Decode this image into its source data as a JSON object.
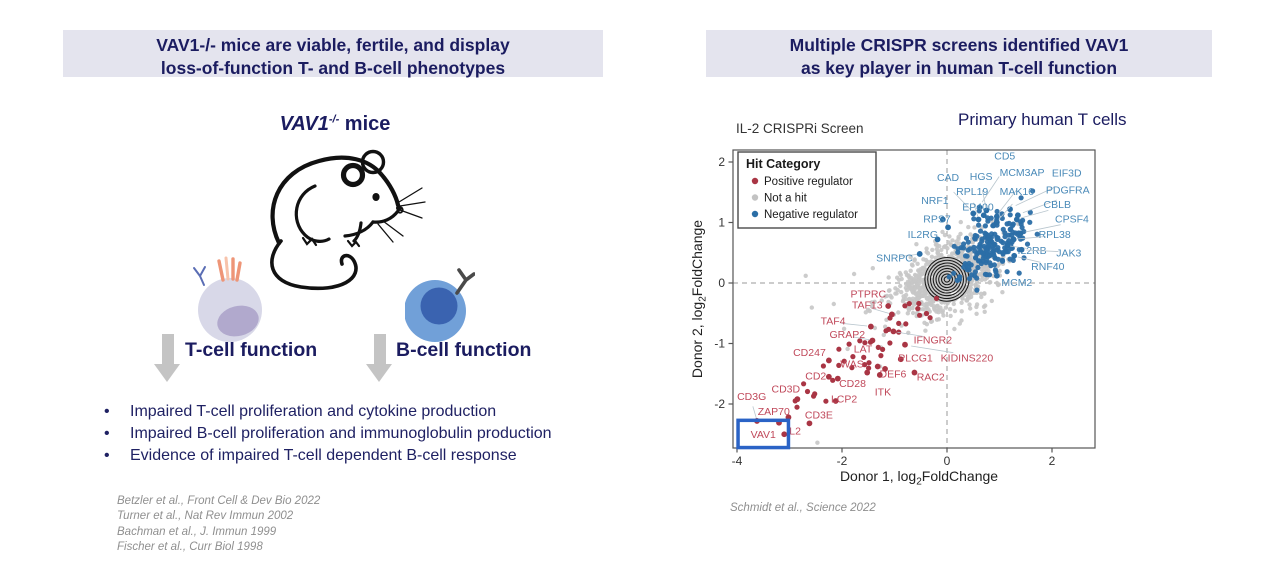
{
  "left_panel": {
    "header": {
      "lines": [
        "VAV1-/- mice are viable, fertile, and display",
        "loss-of-function T- and B-cell phenotypes"
      ],
      "bg_color": "#e4e4ee",
      "text_color": "#1b1c60"
    },
    "mice_title": {
      "gene": "VAV1",
      "superscript": "-/-",
      "suffix": " mice"
    },
    "t_arrow_label": "T-cell function",
    "b_arrow_label": "B-cell function",
    "arrow_color": "#c4c4c4",
    "bullets": [
      "Impaired T-cell proliferation and cytokine production",
      "Impaired B-cell proliferation and immunoglobulin production",
      "Evidence of impaired T-cell dependent B-cell response"
    ],
    "citations": [
      "Betzler et al., Front Cell & Dev Bio 2022",
      "Turner et al., Nat Rev Immun 2002",
      "Bachman et al., J. Immun 1999",
      "Fischer et al., Curr Biol 1998"
    ]
  },
  "right_panel": {
    "header": {
      "lines": [
        "Multiple CRISPR screens identified VAV1",
        "as key player in human T-cell function"
      ]
    },
    "subtitle": "Primary human T cells",
    "citation": "Schmidt et al., Science 2022"
  },
  "chart_data": {
    "type": "scatter",
    "title": "IL-2 CRISPRi Screen",
    "xlabel": {
      "pre": "Donor 1, log",
      "sub": "2",
      "post": "FoldChange"
    },
    "ylabel": {
      "pre": "Donor 2, log",
      "sub": "2",
      "post": "FoldChange"
    },
    "xlim": [
      -4.1,
      2.85
    ],
    "ylim": [
      -2.75,
      2.2
    ],
    "xticks": [
      -4,
      -2,
      0,
      2
    ],
    "yticks": [
      -2,
      -1,
      0,
      1,
      2
    ],
    "grid": false,
    "zero_lines": "dashed",
    "legend": {
      "title": "Hit Category",
      "position": "top-left",
      "entries": [
        {
          "label": "Positive regulator",
          "color": "#a93544"
        },
        {
          "label": "Not a hit",
          "color": "#c3c3c3"
        },
        {
          "label": "Negative regulator",
          "color": "#2b6ea6"
        }
      ]
    },
    "colors": {
      "positive_point": "#a93544",
      "positive_label": "#c0485a",
      "negative_point": "#2b6ea6",
      "negative_label": "#4a8ab8",
      "not_hit": "#c6c6c6",
      "contour": "#1a1a1a",
      "axis": "#555555",
      "tick_text": "#333333",
      "dashed": "#999999",
      "leader": "#b9c6ce",
      "highlight_box": "#2a63c6"
    },
    "genes": {
      "negative_regulators": [
        {
          "name": "CD5",
          "x": 0.62,
          "y": 1.25,
          "label_x": 1.1,
          "label_y": 2.1
        },
        {
          "name": "CAD",
          "x": 0.5,
          "y": 1.15,
          "label_x": 0.02,
          "label_y": 1.74
        },
        {
          "name": "HGS",
          "x": 0.75,
          "y": 1.2,
          "label_x": 0.65,
          "label_y": 1.76
        },
        {
          "name": "MCM3AP",
          "x": 0.95,
          "y": 1.1,
          "label_x": 1.43,
          "label_y": 1.83
        },
        {
          "name": "EIF3D",
          "x": 1.2,
          "y": 1.22,
          "label_x": 2.28,
          "label_y": 1.82
        },
        {
          "name": "RPL19",
          "x": 0.6,
          "y": 1.05,
          "label_x": 0.48,
          "label_y": 1.51
        },
        {
          "name": "MAK16",
          "x": 0.95,
          "y": 1.0,
          "label_x": 1.33,
          "label_y": 1.51
        },
        {
          "name": "PDGFRA",
          "x": 1.35,
          "y": 1.12,
          "label_x": 2.3,
          "label_y": 1.54
        },
        {
          "name": "NRF1",
          "x": -0.08,
          "y": 1.05,
          "label_x": -0.23,
          "label_y": 1.36
        },
        {
          "name": "EP400",
          "x": 0.7,
          "y": 1.12,
          "label_x": 0.59,
          "label_y": 1.26
        },
        {
          "name": "CBLB",
          "x": 1.33,
          "y": 1.05,
          "label_x": 2.1,
          "label_y": 1.3
        },
        {
          "name": "RPS7",
          "x": 0.02,
          "y": 0.92,
          "label_x": -0.19,
          "label_y": 1.06
        },
        {
          "name": "CPSF4",
          "x": 1.4,
          "y": 0.82,
          "label_x": 2.38,
          "label_y": 1.06
        },
        {
          "name": "IL2RG",
          "x": -0.18,
          "y": 0.72,
          "label_x": -0.46,
          "label_y": 0.8
        },
        {
          "name": "RPL38",
          "x": 1.27,
          "y": 0.72,
          "label_x": 2.05,
          "label_y": 0.8
        },
        {
          "name": "SNRPC",
          "x": -0.52,
          "y": 0.48,
          "label_x": -1.0,
          "label_y": 0.41
        },
        {
          "name": "IL2RB",
          "x": 1.15,
          "y": 0.62,
          "label_x": 1.62,
          "label_y": 0.54
        },
        {
          "name": "JAK3",
          "x": 1.42,
          "y": 0.55,
          "label_x": 2.32,
          "label_y": 0.5
        },
        {
          "name": "RNF40",
          "x": 1.28,
          "y": 0.45,
          "label_x": 1.92,
          "label_y": 0.27
        },
        {
          "name": "MCM2",
          "x": 0.95,
          "y": 0.12,
          "label_x": 1.33,
          "label_y": 0.01
        }
      ],
      "positive_regulators": [
        {
          "name": "PTPRC",
          "x": -1.12,
          "y": -0.38,
          "label_x": -1.5,
          "label_y": -0.18
        },
        {
          "name": "TAF13",
          "x": -1.05,
          "y": -0.52,
          "label_x": -1.52,
          "label_y": -0.36
        },
        {
          "name": "TAF4",
          "x": -1.45,
          "y": -0.72,
          "label_x": -2.17,
          "label_y": -0.63
        },
        {
          "name": "GRAP2",
          "x": -1.42,
          "y": -0.95,
          "label_x": -1.9,
          "label_y": -0.85
        },
        {
          "name": "CD247",
          "x": -2.25,
          "y": -1.28,
          "label_x": -2.62,
          "label_y": -1.15
        },
        {
          "name": "LAT",
          "x": -1.32,
          "y": -1.38,
          "label_x": -1.6,
          "label_y": -1.09
        },
        {
          "name": "WAS",
          "x": -1.52,
          "y": -1.48,
          "label_x": -1.81,
          "label_y": -1.34
        },
        {
          "name": "CD2",
          "x": -2.25,
          "y": -1.55,
          "label_x": -2.5,
          "label_y": -1.54
        },
        {
          "name": "CD28",
          "x": -2.08,
          "y": -1.58,
          "label_x": -1.8,
          "label_y": -1.66
        },
        {
          "name": "IFNGR2",
          "x": -1.02,
          "y": -0.8,
          "label_x": -0.27,
          "label_y": -0.94
        },
        {
          "name": "KIDINS220",
          "x": -0.8,
          "y": -1.02,
          "label_x": 0.38,
          "label_y": -1.24
        },
        {
          "name": "PLCG1",
          "x": -0.88,
          "y": -1.26,
          "label_x": -0.6,
          "label_y": -1.24
        },
        {
          "name": "DEF6",
          "x": -1.18,
          "y": -1.42,
          "label_x": -1.03,
          "label_y": -1.5
        },
        {
          "name": "RAC2",
          "x": -0.62,
          "y": -1.48,
          "label_x": -0.31,
          "label_y": -1.55
        },
        {
          "name": "ITK",
          "x": -1.28,
          "y": -1.52,
          "label_x": -1.22,
          "label_y": -1.8
        },
        {
          "name": "CD3D",
          "x": -2.85,
          "y": -1.92,
          "label_x": -3.07,
          "label_y": -1.75
        },
        {
          "name": "CD3G",
          "x": -3.62,
          "y": -2.28,
          "label_x": -3.72,
          "label_y": -1.88
        },
        {
          "name": "ZAP70",
          "x": -3.02,
          "y": -2.22,
          "label_x": -3.3,
          "label_y": -2.12
        },
        {
          "name": "CD3E",
          "x": -2.62,
          "y": -2.32,
          "label_x": -2.44,
          "label_y": -2.18
        },
        {
          "name": "LCP2",
          "x": -2.12,
          "y": -1.95,
          "label_x": -1.96,
          "label_y": -1.92
        },
        {
          "name": "IL2",
          "x": -3.1,
          "y": -2.5,
          "label_x": -2.92,
          "label_y": -2.45
        }
      ]
    },
    "highlight": {
      "name": "VAV1",
      "x": -3.2,
      "y": -2.31,
      "box": [
        -3.98,
        -2.72,
        -3.02,
        -2.27
      ]
    },
    "background_density": {
      "gray_cloud": {
        "cx": 0.0,
        "cy": 0.08,
        "sx": 0.46,
        "sy": 0.3,
        "corr": 0.45,
        "n": 820
      },
      "gray_sparse": {
        "cx": -0.15,
        "cy": 0.0,
        "sx": 1.05,
        "sy": 0.6,
        "corr": 0.55,
        "n": 60
      },
      "blue_cluster": {
        "cx": 0.85,
        "cy": 0.62,
        "sx": 0.33,
        "sy": 0.3,
        "corr": 0.5,
        "n": 185
      },
      "red_band": {
        "x0": -2.7,
        "y0": -1.95,
        "x1": -0.5,
        "y1": -0.45,
        "jitter_x": 0.33,
        "jitter_y": 0.22,
        "n": 40
      }
    },
    "contours": {
      "cx": 0.0,
      "cy": 0.06,
      "rings": 8,
      "max_rx": 0.42,
      "max_ry": 0.36
    }
  }
}
